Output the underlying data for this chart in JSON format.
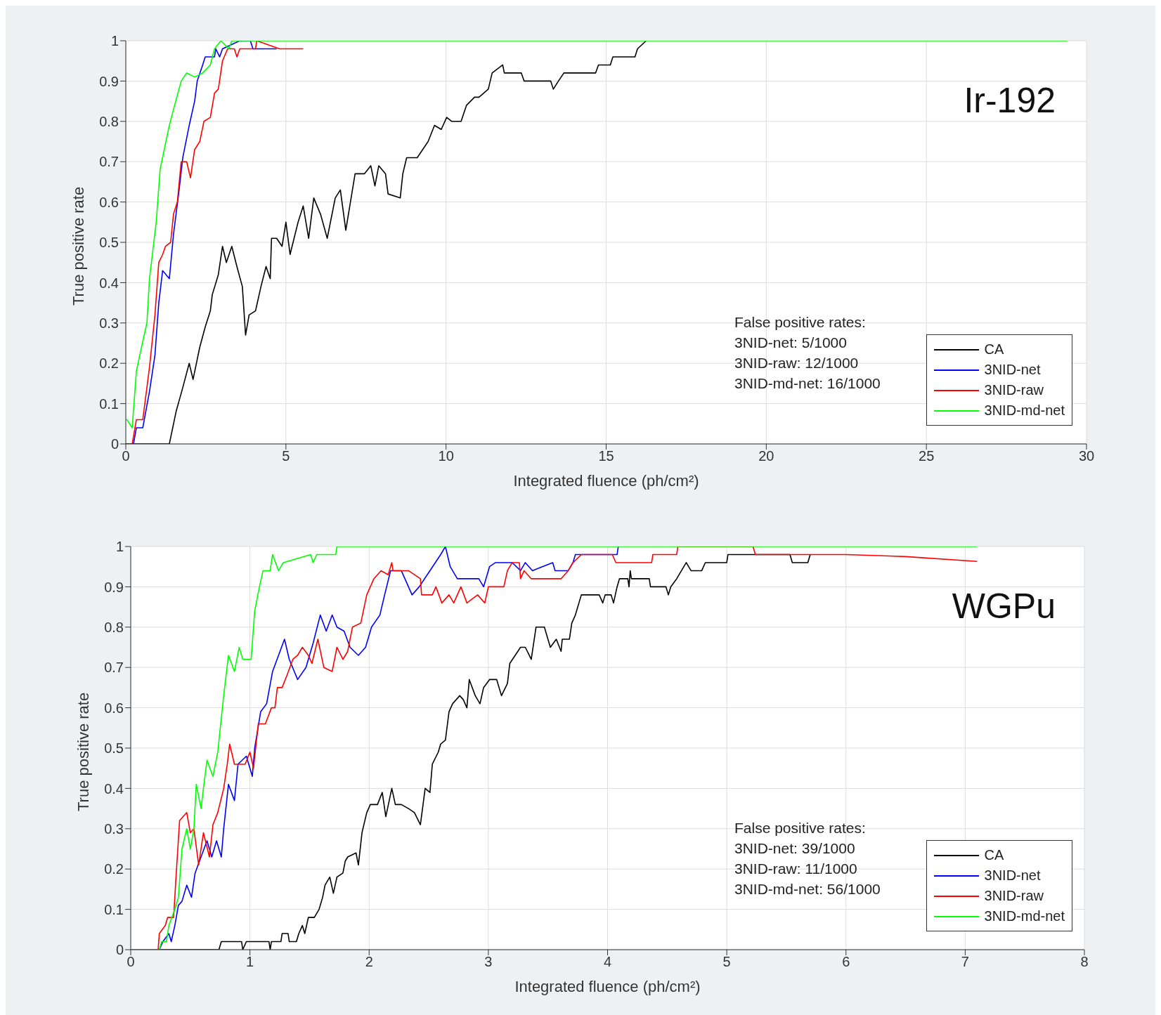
{
  "chart_data": [
    {
      "type": "line",
      "xlabel": "Integrated fluence (ph/cm²)",
      "ylabel": "True positive rate",
      "xlim": [
        0,
        30
      ],
      "xticks": [
        0,
        5,
        10,
        15,
        20,
        25,
        30
      ],
      "ylim": [
        0,
        1
      ],
      "yticks": [
        0,
        0.1,
        0.2,
        0.3,
        0.4,
        0.5,
        0.6,
        0.7,
        0.8,
        0.9,
        1
      ],
      "grid": true,
      "legend": "bottom right",
      "marker": "none",
      "line_style": "solid",
      "annotations": [
        "Ir-192",
        "False positive rates:",
        "3NID-net: 5/1000",
        "3NID-raw: 12/1000",
        "3NID-md-net: 16/1000"
      ],
      "series": [
        {
          "name": "CA",
          "color": "#000000",
          "x": [
            0,
            1.36,
            1.57,
            1.78,
            1.98,
            2.1,
            2.31,
            2.48,
            2.64,
            2.7,
            2.89,
            3.02,
            3.14,
            3.31,
            3.47,
            3.64,
            3.74,
            3.85,
            4.05,
            4.22,
            4.38,
            4.51,
            4.55,
            4.71,
            4.88,
            5.0,
            5.13,
            5.38,
            5.54,
            5.71,
            5.87,
            6.08,
            6.29,
            6.54,
            6.7,
            6.87,
            7.16,
            7.45,
            7.65,
            7.78,
            7.9,
            8.11,
            8.19,
            8.57,
            8.65,
            8.77,
            9.1,
            9.44,
            9.64,
            9.85,
            10.02,
            10.18,
            10.47,
            10.64,
            10.89,
            11.03,
            11.32,
            11.44,
            11.77,
            11.82,
            12.35,
            12.44,
            13.27,
            13.35,
            13.51,
            13.68,
            14.67,
            14.76,
            15.13,
            15.21,
            15.9,
            15.98,
            16.25
          ],
          "values": [
            0,
            0,
            0.08,
            0.14,
            0.2,
            0.16,
            0.24,
            0.29,
            0.33,
            0.37,
            0.42,
            0.49,
            0.45,
            0.49,
            0.44,
            0.39,
            0.27,
            0.32,
            0.33,
            0.39,
            0.44,
            0.41,
            0.51,
            0.51,
            0.49,
            0.55,
            0.47,
            0.55,
            0.59,
            0.51,
            0.61,
            0.57,
            0.51,
            0.61,
            0.63,
            0.53,
            0.67,
            0.67,
            0.69,
            0.64,
            0.69,
            0.67,
            0.62,
            0.61,
            0.67,
            0.71,
            0.71,
            0.75,
            0.79,
            0.78,
            0.81,
            0.8,
            0.8,
            0.84,
            0.86,
            0.86,
            0.88,
            0.92,
            0.94,
            0.92,
            0.92,
            0.9,
            0.9,
            0.88,
            0.9,
            0.92,
            0.92,
            0.94,
            0.94,
            0.96,
            0.96,
            0.98,
            1
          ]
        },
        {
          "name": "3NID-net",
          "color": "#0000ff",
          "x": [
            0,
            0.24,
            0.33,
            0.53,
            0.74,
            0.91,
            1.03,
            1.15,
            1.36,
            1.49,
            1.65,
            1.78,
            1.98,
            2.15,
            2.23,
            2.4,
            2.48,
            2.77,
            2.81,
            2.93,
            3.02,
            3.56,
            3.89,
            3.97,
            4.71
          ],
          "values": [
            0,
            0,
            0.04,
            0.04,
            0.13,
            0.22,
            0.35,
            0.43,
            0.41,
            0.52,
            0.62,
            0.71,
            0.79,
            0.85,
            0.9,
            0.94,
            0.96,
            0.96,
            0.98,
            0.96,
            0.98,
            1,
            1,
            0.98,
            0.98
          ]
        },
        {
          "name": "3NID-raw",
          "color": "#ff0000",
          "x": [
            0.04,
            0.2,
            0.33,
            0.53,
            0.74,
            0.91,
            1.03,
            1.15,
            1.24,
            1.4,
            1.49,
            1.61,
            1.73,
            1.9,
            2.02,
            2.15,
            2.31,
            2.44,
            2.64,
            2.77,
            2.89,
            3.02,
            3.18,
            3.39,
            3.47,
            3.56,
            4.05,
            4.09,
            4.8,
            5.54
          ],
          "values": [
            0,
            0,
            0.06,
            0.06,
            0.19,
            0.32,
            0.45,
            0.47,
            0.49,
            0.5,
            0.57,
            0.6,
            0.7,
            0.7,
            0.66,
            0.73,
            0.75,
            0.8,
            0.81,
            0.87,
            0.88,
            0.95,
            0.98,
            0.98,
            0.96,
            0.98,
            0.98,
            1,
            0.98,
            0.98
          ]
        },
        {
          "name": "3NID-md-net",
          "color": "#00ff00",
          "x": [
            0,
            0.04,
            0.2,
            0.33,
            0.49,
            0.66,
            0.74,
            0.86,
            0.95,
            1.07,
            1.2,
            1.36,
            1.49,
            1.73,
            1.9,
            2.15,
            2.4,
            2.64,
            2.77,
            2.97,
            3.22,
            3.31,
            29.4
          ],
          "values": [
            0.06,
            0.06,
            0.04,
            0.18,
            0.24,
            0.3,
            0.41,
            0.49,
            0.55,
            0.68,
            0.73,
            0.79,
            0.83,
            0.9,
            0.92,
            0.91,
            0.92,
            0.94,
            0.98,
            1,
            0.98,
            1,
            1
          ]
        }
      ]
    },
    {
      "type": "line",
      "xlabel": "Integrated fluence (ph/cm²)",
      "ylabel": "True positive rate",
      "xlim": [
        0,
        8
      ],
      "xticks": [
        0,
        1,
        2,
        3,
        4,
        5,
        6,
        7,
        8
      ],
      "ylim": [
        0,
        1
      ],
      "yticks": [
        0,
        0.1,
        0.2,
        0.3,
        0.4,
        0.5,
        0.6,
        0.7,
        0.8,
        0.9,
        1
      ],
      "grid": true,
      "legend": "bottom right",
      "marker": "none",
      "line_style": "solid",
      "annotations": [
        "WGPu",
        "False positive rates:",
        "3NID-net: 39/1000",
        "3NID-raw: 11/1000",
        "3NID-md-net: 56/1000"
      ],
      "series": [
        {
          "name": "CA",
          "color": "#000000",
          "x": [
            0,
            0.74,
            0.76,
            0.93,
            0.94,
            0.97,
            1.16,
            1.17,
            1.18,
            1.26,
            1.27,
            1.32,
            1.33,
            1.39,
            1.41,
            1.44,
            1.46,
            1.49,
            1.54,
            1.58,
            1.61,
            1.63,
            1.67,
            1.7,
            1.73,
            1.78,
            1.8,
            1.82,
            1.89,
            1.91,
            1.94,
            1.98,
            2.01,
            2.07,
            2.11,
            2.14,
            2.19,
            2.22,
            2.27,
            2.33,
            2.38,
            2.43,
            2.47,
            2.51,
            2.53,
            2.58,
            2.6,
            2.64,
            2.67,
            2.7,
            2.76,
            2.79,
            2.82,
            2.84,
            2.89,
            2.93,
            2.96,
            3.01,
            3.07,
            3.11,
            3.16,
            3.18,
            3.27,
            3.31,
            3.36,
            3.4,
            3.47,
            3.52,
            3.57,
            3.61,
            3.62,
            3.68,
            3.7,
            3.73,
            3.78,
            3.93,
            3.96,
            3.98,
            4.03,
            4.05,
            4.08,
            4.1,
            4.17,
            4.18,
            4.19,
            4.2,
            4.35,
            4.36,
            4.49,
            4.51,
            4.53,
            4.58,
            4.62,
            4.66,
            4.7,
            4.79,
            4.82,
            5.0,
            5.01,
            5.24,
            5.53,
            5.55,
            5.68,
            5.7
          ],
          "values": [
            0,
            0,
            0.02,
            0.02,
            0,
            0.02,
            0.02,
            0,
            0.02,
            0.02,
            0.04,
            0.04,
            0.02,
            0.02,
            0.04,
            0.06,
            0.04,
            0.08,
            0.08,
            0.1,
            0.13,
            0.16,
            0.18,
            0.14,
            0.18,
            0.19,
            0.22,
            0.23,
            0.24,
            0.21,
            0.29,
            0.34,
            0.36,
            0.36,
            0.39,
            0.33,
            0.4,
            0.36,
            0.36,
            0.35,
            0.34,
            0.31,
            0.4,
            0.39,
            0.46,
            0.49,
            0.51,
            0.52,
            0.59,
            0.61,
            0.63,
            0.62,
            0.6,
            0.67,
            0.63,
            0.61,
            0.65,
            0.67,
            0.67,
            0.63,
            0.66,
            0.71,
            0.75,
            0.75,
            0.72,
            0.8,
            0.8,
            0.75,
            0.77,
            0.74,
            0.77,
            0.77,
            0.81,
            0.83,
            0.88,
            0.88,
            0.86,
            0.88,
            0.88,
            0.86,
            0.9,
            0.92,
            0.92,
            0.9,
            0.94,
            0.92,
            0.92,
            0.9,
            0.9,
            0.88,
            0.9,
            0.92,
            0.94,
            0.96,
            0.94,
            0.94,
            0.96,
            0.96,
            0.98,
            0.98,
            0.98,
            0.96,
            0.96,
            0.98
          ]
        },
        {
          "name": "3NID-net",
          "color": "#0000ff",
          "x": [
            0,
            0.24,
            0.27,
            0.32,
            0.34,
            0.37,
            0.4,
            0.43,
            0.47,
            0.51,
            0.54,
            0.59,
            0.64,
            0.68,
            0.72,
            0.76,
            0.78,
            0.82,
            0.87,
            0.9,
            0.97,
            1.02,
            1.04,
            1.09,
            1.14,
            1.19,
            1.24,
            1.29,
            1.33,
            1.4,
            1.47,
            1.53,
            1.59,
            1.64,
            1.69,
            1.73,
            1.79,
            1.84,
            1.91,
            1.97,
            2.02,
            2.09,
            2.13,
            2.18,
            2.27,
            2.36,
            2.42,
            2.51,
            2.6,
            2.64,
            2.68,
            2.74,
            2.92,
            2.96,
            3.01,
            3.06,
            3.2,
            3.27,
            3.31,
            3.37,
            3.54,
            3.56,
            3.67,
            3.71,
            3.73,
            4.08,
            4.09
          ],
          "values": [
            0,
            0,
            0.02,
            0.04,
            0.02,
            0.06,
            0.11,
            0.12,
            0.16,
            0.13,
            0.19,
            0.23,
            0.27,
            0.23,
            0.27,
            0.23,
            0.3,
            0.41,
            0.37,
            0.46,
            0.48,
            0.43,
            0.5,
            0.59,
            0.61,
            0.69,
            0.73,
            0.77,
            0.72,
            0.67,
            0.7,
            0.76,
            0.83,
            0.79,
            0.83,
            0.8,
            0.79,
            0.75,
            0.73,
            0.75,
            0.8,
            0.83,
            0.88,
            0.94,
            0.94,
            0.88,
            0.9,
            0.94,
            0.98,
            1,
            0.95,
            0.92,
            0.92,
            0.9,
            0.95,
            0.96,
            0.96,
            0.94,
            0.96,
            0.94,
            0.96,
            0.94,
            0.94,
            0.96,
            0.98,
            0.98,
            1
          ]
        },
        {
          "name": "3NID-raw",
          "color": "#ff0000",
          "x": [
            0,
            0.23,
            0.24,
            0.29,
            0.31,
            0.36,
            0.38,
            0.41,
            0.47,
            0.5,
            0.53,
            0.57,
            0.61,
            0.66,
            0.69,
            0.73,
            0.78,
            0.81,
            0.83,
            0.87,
            0.96,
            1.0,
            1.03,
            1.07,
            1.13,
            1.18,
            1.21,
            1.23,
            1.27,
            1.31,
            1.36,
            1.4,
            1.44,
            1.49,
            1.52,
            1.57,
            1.62,
            1.69,
            1.73,
            1.78,
            1.82,
            1.86,
            1.93,
            1.98,
            2.04,
            2.1,
            2.16,
            2.19,
            2.2,
            2.33,
            2.43,
            2.44,
            2.53,
            2.56,
            2.61,
            2.67,
            2.71,
            2.77,
            2.82,
            2.91,
            2.97,
            3.0,
            3.13,
            3.16,
            3.2,
            3.26,
            3.27,
            3.3,
            3.36,
            3.61,
            3.67,
            3.71,
            3.78,
            4.04,
            4.07,
            4.37,
            4.38,
            4.58,
            4.59,
            5.22,
            5.24,
            6.0,
            6.5,
            7.1
          ],
          "values": [
            0,
            0,
            0.04,
            0.06,
            0.08,
            0.08,
            0.18,
            0.32,
            0.34,
            0.29,
            0.3,
            0.21,
            0.29,
            0.23,
            0.31,
            0.34,
            0.4,
            0.46,
            0.51,
            0.46,
            0.46,
            0.49,
            0.45,
            0.56,
            0.56,
            0.6,
            0.6,
            0.65,
            0.65,
            0.68,
            0.72,
            0.73,
            0.75,
            0.73,
            0.71,
            0.77,
            0.7,
            0.69,
            0.75,
            0.72,
            0.74,
            0.8,
            0.81,
            0.88,
            0.92,
            0.94,
            0.93,
            0.96,
            0.94,
            0.94,
            0.92,
            0.88,
            0.88,
            0.9,
            0.86,
            0.88,
            0.86,
            0.9,
            0.86,
            0.88,
            0.86,
            0.9,
            0.9,
            0.94,
            0.96,
            0.96,
            0.92,
            0.94,
            0.92,
            0.92,
            0.94,
            0.96,
            0.98,
            0.98,
            0.96,
            0.96,
            0.98,
            0.98,
            1,
            1,
            0.98,
            0.98,
            0.975,
            0.963
          ]
        },
        {
          "name": "3NID-md-net",
          "color": "#00ff00",
          "x": [
            0,
            0.24,
            0.26,
            0.3,
            0.32,
            0.37,
            0.4,
            0.43,
            0.47,
            0.5,
            0.53,
            0.55,
            0.59,
            0.61,
            0.64,
            0.69,
            0.73,
            0.78,
            0.82,
            0.87,
            0.91,
            0.94,
            1.01,
            1.04,
            1.08,
            1.11,
            1.17,
            1.19,
            1.24,
            1.28,
            1.51,
            1.53,
            1.56,
            1.72,
            1.73,
            7.1
          ],
          "values": [
            0,
            0,
            0.02,
            0.02,
            0.06,
            0.1,
            0.13,
            0.25,
            0.3,
            0.25,
            0.3,
            0.41,
            0.35,
            0.4,
            0.47,
            0.43,
            0.49,
            0.63,
            0.73,
            0.69,
            0.75,
            0.72,
            0.72,
            0.84,
            0.9,
            0.94,
            0.94,
            0.98,
            0.94,
            0.96,
            0.98,
            0.96,
            0.98,
            0.98,
            1,
            1
          ]
        }
      ]
    }
  ]
}
